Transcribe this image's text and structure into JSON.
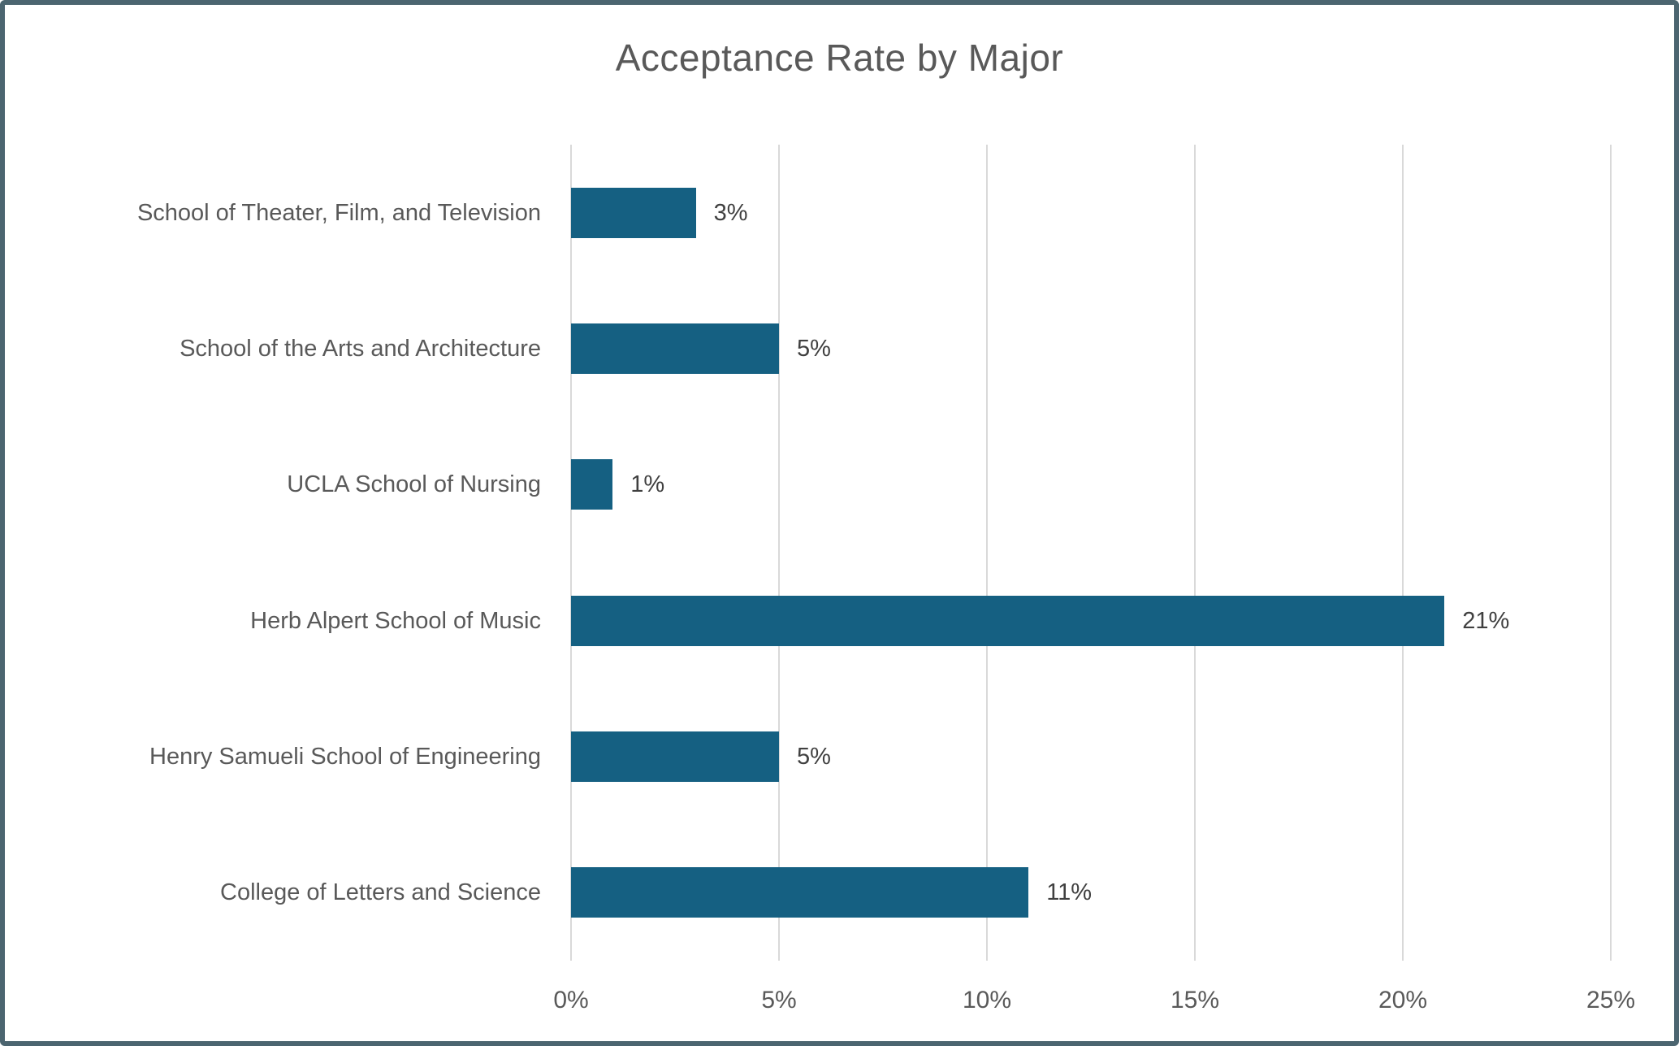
{
  "chart": {
    "colors": {
      "bar_fill": "#156082",
      "gridline": "#D9D9D9",
      "title_text": "#595959",
      "axis_text": "#595959",
      "data_label_text": "#404040",
      "frame_border": "#4C6570",
      "background": "#FFFFFF"
    }
  },
  "chart_data": {
    "type": "bar",
    "orientation": "horizontal",
    "title": "Acceptance Rate by Major",
    "categories": [
      "School of Theater, Film, and Television",
      "School of the Arts and Architecture",
      "UCLA School of Nursing",
      "Herb Alpert School of Music",
      "Henry Samueli School of Engineering",
      "College of Letters and Science"
    ],
    "values": [
      3,
      5,
      1,
      21,
      5,
      11
    ],
    "data_labels": [
      "3%",
      "5%",
      "1%",
      "21%",
      "5%",
      "11%"
    ],
    "x_ticks": [
      "0%",
      "5%",
      "10%",
      "15%",
      "20%",
      "25%"
    ],
    "x_tick_values": [
      0,
      5,
      10,
      15,
      20,
      25
    ],
    "xlim": [
      0,
      25
    ],
    "xlabel": "",
    "ylabel": "",
    "grid": "vertical-major-only",
    "legend": "none"
  }
}
